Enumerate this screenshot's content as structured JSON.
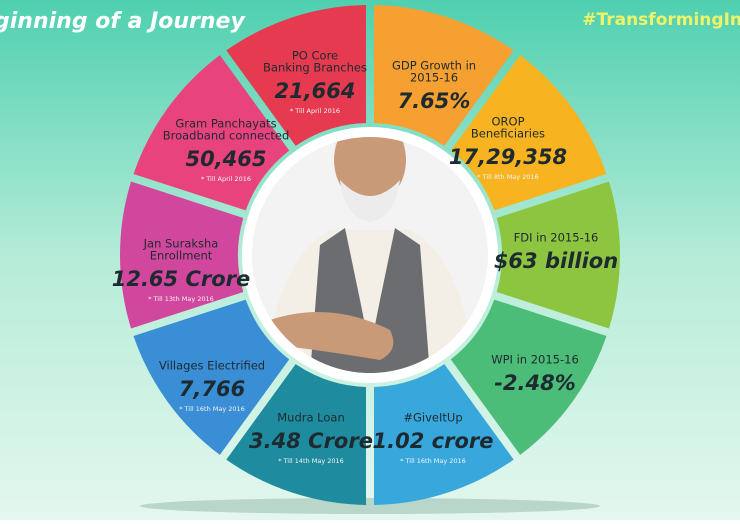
{
  "header": {
    "title": "ginning of a Journey",
    "hashtag": "#TransformingIn"
  },
  "segments": [
    {
      "label": [
        "GDP Growth in",
        "2015-16"
      ],
      "value": "7.65%",
      "color": "#f5a031"
    },
    {
      "label": [
        "OROP",
        "Beneficiaries"
      ],
      "value": "17,29,358",
      "note": "* Till 8th May 2016",
      "color": "#f8b321"
    },
    {
      "label": [
        "FDI in 2015-16"
      ],
      "value": "$63 billion",
      "color": "#8dc540"
    },
    {
      "label": [
        "WPI in 2015-16"
      ],
      "value": "-2.48%",
      "color": "#4cbc79"
    },
    {
      "label": [
        "#GiveItUp"
      ],
      "value": "1.02 crore",
      "note": "* Till 16th May 2016",
      "color": "#38a8dc"
    },
    {
      "label": [
        "Mudra Loan"
      ],
      "value": "3.48 Crore",
      "note": "* Till 14th May 2016",
      "color": "#1e8c9e"
    },
    {
      "label": [
        "Villages Electrified"
      ],
      "value": "7,766",
      "note": "* Till 16th May 2016",
      "color": "#3a8ed5"
    },
    {
      "label": [
        "Jan Suraksha",
        "Enrollment"
      ],
      "value": "12.65 Crore",
      "note": "* Till 13th May 2016",
      "color": "#d1479e"
    },
    {
      "label": [
        "Gram Panchayats",
        "Broadband connected"
      ],
      "value": "50,465",
      "note": "* Till April 2016",
      "color": "#e8437d"
    },
    {
      "label": [
        "PO Core",
        "Banking Branches"
      ],
      "value": "21,664",
      "note": "* Till April 2016",
      "color": "#e63a50"
    }
  ]
}
